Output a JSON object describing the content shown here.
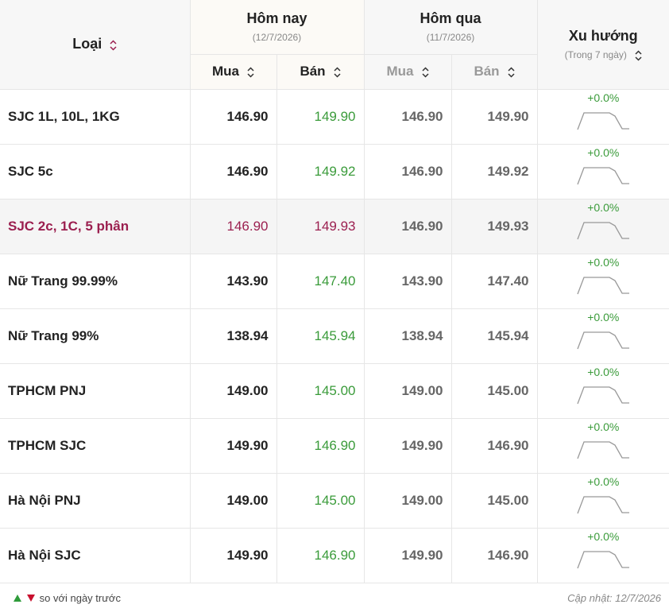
{
  "header": {
    "type_label": "Loại",
    "today": {
      "title": "Hôm nay",
      "date": "(12/7/2026)",
      "buy": "Mua",
      "sell": "Bán"
    },
    "yesterday": {
      "title": "Hôm qua",
      "date": "(11/7/2026)",
      "buy": "Mua",
      "sell": "Bán"
    },
    "trend": {
      "title": "Xu hướng",
      "subtitle": "(Trong 7 ngày)"
    }
  },
  "rows": [
    {
      "name": "SJC 1L, 10L, 1KG",
      "today_buy": "146.90",
      "today_sell": "149.90",
      "yesterday_buy": "146.90",
      "yesterday_sell": "149.90",
      "trend": "+0.0%"
    },
    {
      "name": "SJC 5c",
      "today_buy": "146.90",
      "today_sell": "149.92",
      "yesterday_buy": "146.90",
      "yesterday_sell": "149.92",
      "trend": "+0.0%"
    },
    {
      "name": "SJC 2c, 1C, 5 phân",
      "today_buy": "146.90",
      "today_sell": "149.93",
      "yesterday_buy": "146.90",
      "yesterday_sell": "149.93",
      "trend": "+0.0%",
      "highlight": true
    },
    {
      "name": "Nữ Trang 99.99%",
      "today_buy": "143.90",
      "today_sell": "147.40",
      "yesterday_buy": "143.90",
      "yesterday_sell": "147.40",
      "trend": "+0.0%"
    },
    {
      "name": "Nữ Trang 99%",
      "today_buy": "138.94",
      "today_sell": "145.94",
      "yesterday_buy": "138.94",
      "yesterday_sell": "145.94",
      "trend": "+0.0%"
    },
    {
      "name": "TPHCM PNJ",
      "today_buy": "149.00",
      "today_sell": "145.00",
      "yesterday_buy": "149.00",
      "yesterday_sell": "145.00",
      "trend": "+0.0%"
    },
    {
      "name": "TPHCM SJC",
      "today_buy": "149.90",
      "today_sell": "146.90",
      "yesterday_buy": "149.90",
      "yesterday_sell": "146.90",
      "trend": "+0.0%"
    },
    {
      "name": "Hà Nội PNJ",
      "today_buy": "149.00",
      "today_sell": "145.00",
      "yesterday_buy": "149.00",
      "yesterday_sell": "145.00",
      "trend": "+0.0%"
    },
    {
      "name": "Hà Nội SJC",
      "today_buy": "149.90",
      "today_sell": "146.90",
      "yesterday_buy": "149.90",
      "yesterday_sell": "146.90",
      "trend": "+0.0%"
    }
  ],
  "footer": {
    "legend": "so với ngày trước",
    "updated": "Cập nhật: 12/7/2026"
  }
}
